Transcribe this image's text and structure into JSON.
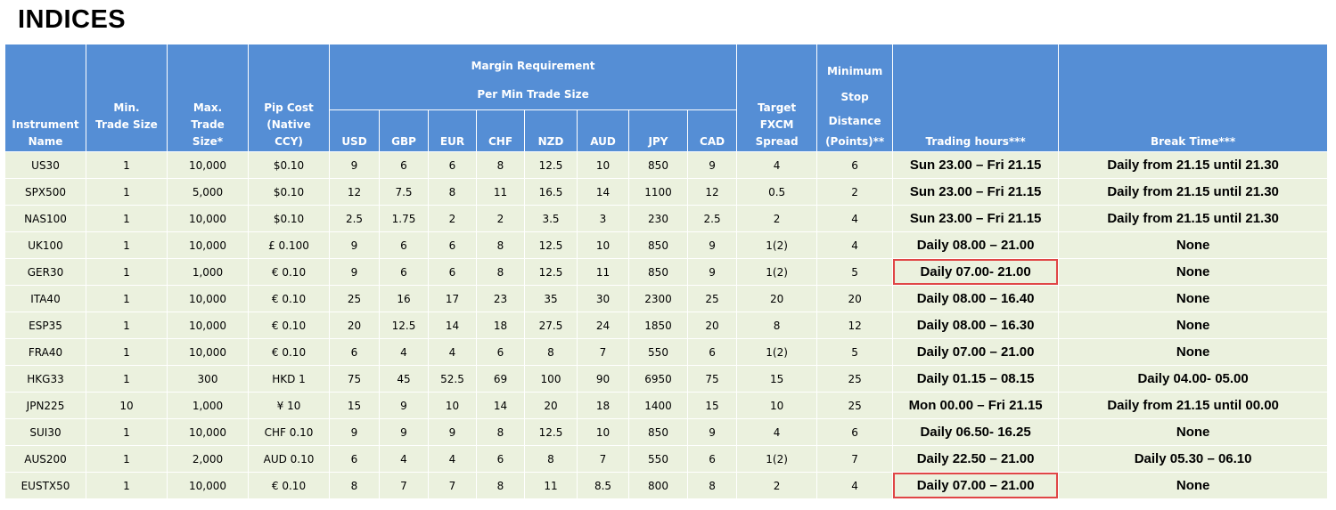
{
  "title": "INDICES",
  "headers": {
    "instrument": [
      "Instrument",
      "Name"
    ],
    "min_trade": [
      "Min.",
      "Trade Size"
    ],
    "max_trade": [
      "Max.",
      "Trade",
      "Size*"
    ],
    "pip_cost": [
      "Pip Cost",
      "(Native",
      "CCY)"
    ],
    "margin_group": [
      "Margin Requirement",
      "Per Min Trade Size"
    ],
    "currencies": [
      "USD",
      "GBP",
      "EUR",
      "CHF",
      "NZD",
      "AUD",
      "JPY",
      "CAD"
    ],
    "spread": [
      "Target",
      "FXCM",
      "Spread"
    ],
    "min_stop": [
      "Minimum",
      "Stop",
      "Distance",
      "(Points)**"
    ],
    "trading_hours": "Trading hours***",
    "break_time": "Break Time***"
  },
  "rows": [
    {
      "cells": [
        "US30",
        "1",
        "10,000",
        "$0.10",
        "9",
        "6",
        "6",
        "8",
        "12.5",
        "10",
        "850",
        "9",
        "4",
        "6",
        "Sun 23.00 – Fri 21.15",
        "Daily from 21.15 until 21.30"
      ],
      "highlight": false
    },
    {
      "cells": [
        "SPX500",
        "1",
        "5,000",
        "$0.10",
        "12",
        "7.5",
        "8",
        "11",
        "16.5",
        "14",
        "1100",
        "12",
        "0.5",
        "2",
        "Sun 23.00 – Fri 21.15",
        "Daily from 21.15 until 21.30"
      ],
      "highlight": false
    },
    {
      "cells": [
        "NAS100",
        "1",
        "10,000",
        "$0.10",
        "2.5",
        "1.75",
        "2",
        "2",
        "3.5",
        "3",
        "230",
        "2.5",
        "2",
        "4",
        "Sun 23.00 – Fri 21.15",
        "Daily from 21.15 until 21.30"
      ],
      "highlight": false
    },
    {
      "cells": [
        "UK100",
        "1",
        "10,000",
        "£ 0.100",
        "9",
        "6",
        "6",
        "8",
        "12.5",
        "10",
        "850",
        "9",
        "1(2)",
        "4",
        "Daily 08.00 – 21.00",
        "None"
      ],
      "highlight": false
    },
    {
      "cells": [
        "GER30",
        "1",
        "1,000",
        "€ 0.10",
        "9",
        "6",
        "6",
        "8",
        "12.5",
        "11",
        "850",
        "9",
        "1(2)",
        "5",
        "Daily 07.00- 21.00",
        "None"
      ],
      "highlight": true
    },
    {
      "cells": [
        "ITA40",
        "1",
        "10,000",
        "€ 0.10",
        "25",
        "16",
        "17",
        "23",
        "35",
        "30",
        "2300",
        "25",
        "20",
        "20",
        "Daily 08.00 – 16.40",
        "None"
      ],
      "highlight": false
    },
    {
      "cells": [
        "ESP35",
        "1",
        "10,000",
        "€ 0.10",
        "20",
        "12.5",
        "14",
        "18",
        "27.5",
        "24",
        "1850",
        "20",
        "8",
        "12",
        "Daily 08.00 – 16.30",
        "None"
      ],
      "highlight": false
    },
    {
      "cells": [
        "FRA40",
        "1",
        "10,000",
        "€ 0.10",
        "6",
        "4",
        "4",
        "6",
        "8",
        "7",
        "550",
        "6",
        "1(2)",
        "5",
        "Daily  07.00 – 21.00",
        "None"
      ],
      "highlight": false
    },
    {
      "cells": [
        "HKG33",
        "1",
        "300",
        "HKD 1",
        "75",
        "45",
        "52.5",
        "69",
        "100",
        "90",
        "6950",
        "75",
        "15",
        "25",
        "Daily 01.15 – 08.15",
        "Daily 04.00- 05.00"
      ],
      "highlight": false
    },
    {
      "cells": [
        "JPN225",
        "10",
        "1,000",
        "¥ 10",
        "15",
        "9",
        "10",
        "14",
        "20",
        "18",
        "1400",
        "15",
        "10",
        "25",
        "Mon 00.00 – Fri 21.15",
        "Daily from 21.15 until 00.00"
      ],
      "highlight": false
    },
    {
      "cells": [
        "SUI30",
        "1",
        "10,000",
        "CHF 0.10",
        "9",
        "9",
        "9",
        "8",
        "12.5",
        "10",
        "850",
        "9",
        "4",
        "6",
        "Daily 06.50- 16.25",
        "None"
      ],
      "highlight": false
    },
    {
      "cells": [
        "AUS200",
        "1",
        "2,000",
        "AUD 0.10",
        "6",
        "4",
        "4",
        "6",
        "8",
        "7",
        "550",
        "6",
        "1(2)",
        "7",
        "Daily 22.50 – 21.00",
        "Daily 05.30 – 06.10"
      ],
      "highlight": false
    },
    {
      "cells": [
        "EUSTX50",
        "1",
        "10,000",
        "€ 0.10",
        "8",
        "7",
        "7",
        "8",
        "11",
        "8.5",
        "800",
        "8",
        "2",
        "4",
        "Daily 07.00 – 21.00",
        "None"
      ],
      "highlight": true
    }
  ]
}
